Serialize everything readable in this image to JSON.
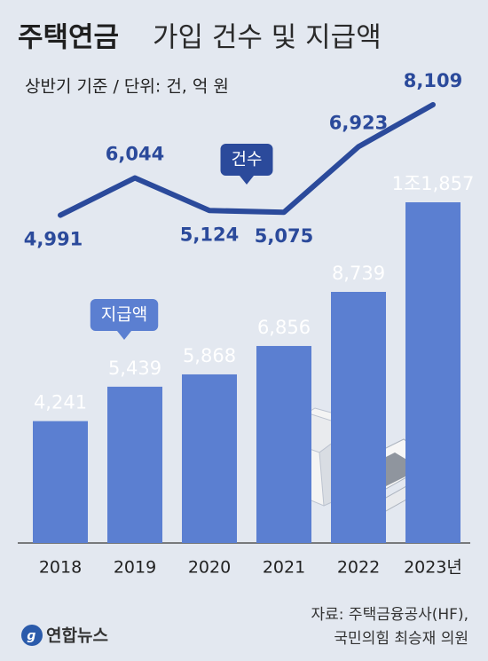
{
  "chart_data": {
    "type": "combo",
    "title": [
      "주택연금",
      "가입 건수 및 지급액"
    ],
    "subtitle": "상반기 기준 / 단위: 건, 억 원",
    "categories": [
      "2018",
      "2019",
      "2020",
      "2021",
      "2022",
      "2023년"
    ],
    "series": [
      {
        "name": "지급액",
        "type": "bar",
        "color": "#5b7fd1",
        "values": [
          4241,
          5439,
          5868,
          6856,
          8739,
          11857
        ],
        "value_labels": [
          "4,241",
          "5,439",
          "5,868",
          "6,856",
          "8,739",
          "1조1,857"
        ]
      },
      {
        "name": "건수",
        "type": "line",
        "color": "#2b4a9b",
        "values": [
          4991,
          6044,
          5124,
          5075,
          6923,
          8109
        ],
        "value_labels": [
          "4,991",
          "6,044",
          "5,124",
          "5,075",
          "6,923",
          "8,109"
        ]
      }
    ]
  },
  "source": [
    "자료: 주택금융공사(HF),",
    "국민의힘 최승재 의원"
  ],
  "logo": "연합뉴스"
}
